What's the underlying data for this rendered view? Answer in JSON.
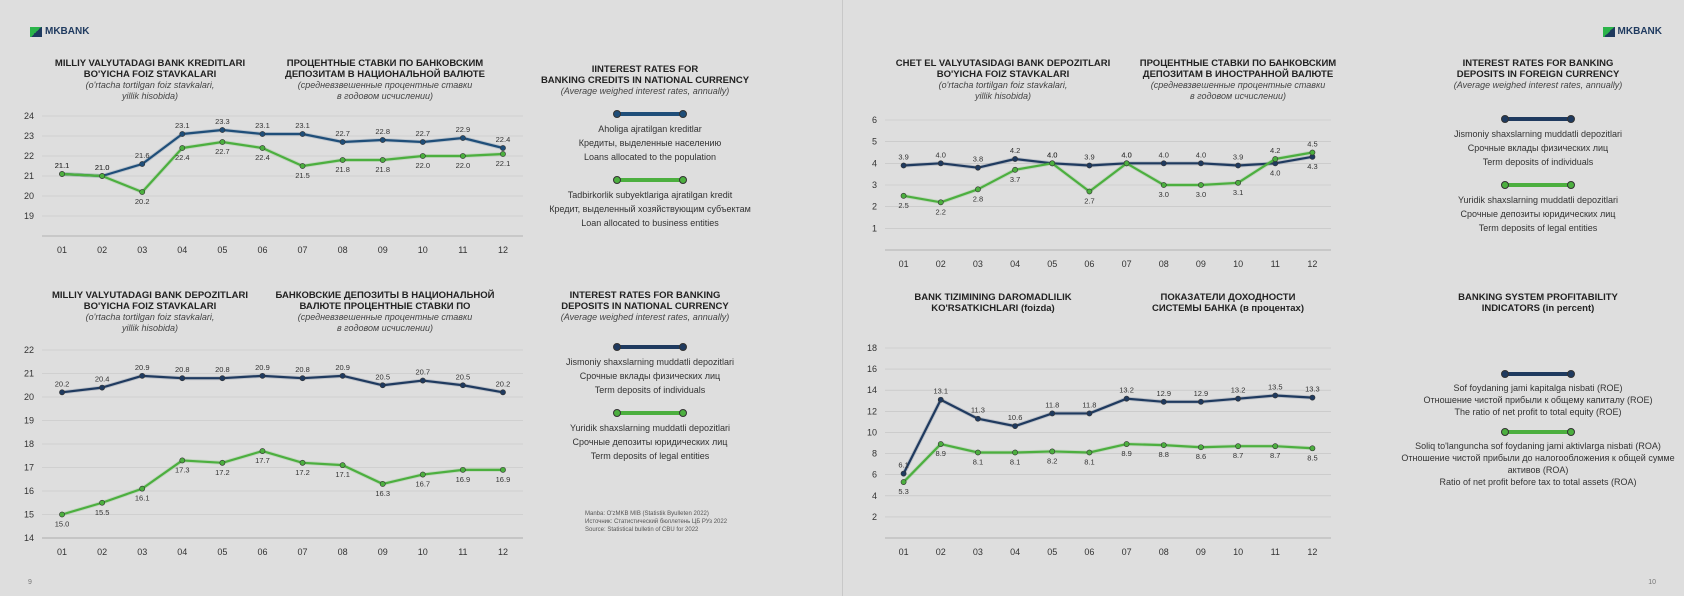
{
  "brand": "MKBANK",
  "pages": {
    "left_number": "9",
    "right_number": "10"
  },
  "source_note": [
    "Manba: O'zMKB MIB (Statistik Byulleten 2022)",
    "Источник: Статистический бюллетень ЦБ РУз 2022",
    "Source: Statistical bulletin of CBU for 2022"
  ],
  "chart_data": [
    {
      "id": "c1",
      "type": "line",
      "titles": {
        "uz": [
          "MILLIY VALYUTADAGI BANK KREDITLARI",
          "BO'YICHA FOIZ STAVKALARI",
          "(o'rtacha tortilgan foiz stavkalari,",
          "yillik hisobida)"
        ],
        "ru": [
          "ПРОЦЕНТНЫЕ СТАВКИ ПО БАНКОВСКИМ",
          "ДЕПОЗИТАМ В НАЦИОНАЛЬНОЙ ВАЛЮТЕ",
          "(средневзвешенные процентные ставки",
          "в годовом исчислении)"
        ],
        "en": [
          "IINTEREST RATES FOR",
          "BANKING CREDITS IN NATIONAL CURRENCY",
          "(Average weighed interest rates, annually)"
        ]
      },
      "categories": [
        "01",
        "02",
        "03",
        "04",
        "05",
        "06",
        "07",
        "08",
        "09",
        "10",
        "11",
        "12"
      ],
      "ylim": [
        18,
        24
      ],
      "yticks": [
        "19",
        "20",
        "21",
        "22",
        "23",
        "24"
      ],
      "series": [
        {
          "name": [
            "Aholiga ajratilgan kreditlar",
            "Кредиты, выделенные населению",
            "Loans allocated to the population"
          ],
          "color": "#1f4e79",
          "values": [
            21.1,
            21.0,
            21.6,
            23.1,
            23.3,
            23.1,
            23.1,
            22.7,
            22.8,
            22.7,
            22.9,
            22.4
          ]
        },
        {
          "name": [
            "Tadbirkorlik subyektlariga ajratilgan kredit",
            "Кредит, выделенный хозяйствующим субъектам",
            "Loan allocated to business entities"
          ],
          "color": "#4caf3f",
          "values": [
            21.1,
            21.0,
            20.2,
            22.4,
            22.7,
            22.4,
            21.5,
            21.8,
            21.8,
            22.0,
            22.0,
            22.1
          ]
        }
      ]
    },
    {
      "id": "c2",
      "type": "line",
      "titles": {
        "uz": [
          "MILLIY VALYUTADAGI BANK DEPOZITLARI",
          "BO'YICHA FOIZ STAVKALARI",
          "(o'rtacha tortilgan foiz stavkalari,",
          "yillik hisobida)"
        ],
        "ru": [
          "БАНКОВСКИЕ ДЕПОЗИТЫ В НАЦИОНАЛЬНОЙ",
          "ВАЛЮТЕ ПРОЦЕНТНЫЕ СТАВКИ ПО",
          "(средневзвешенные процентные ставки",
          "в годовом исчислении)"
        ],
        "en": [
          "INTEREST RATES FOR BANKING",
          "DEPOSITS IN NATIONAL CURRENCY",
          "(Average weighed interest rates, annually)"
        ]
      },
      "categories": [
        "01",
        "02",
        "03",
        "04",
        "05",
        "06",
        "07",
        "08",
        "09",
        "10",
        "11",
        "12"
      ],
      "ylim": [
        14,
        22
      ],
      "yticks": [
        "14",
        "15",
        "16",
        "17",
        "18",
        "19",
        "20",
        "21",
        "22"
      ],
      "series": [
        {
          "name": [
            "Jismoniy shaxslarning muddatli depozitlari",
            "Срочные вклады физических лиц",
            "Term deposits of individuals"
          ],
          "color": "#1f3a5f",
          "values": [
            20.2,
            20.4,
            20.9,
            20.8,
            20.8,
            20.9,
            20.8,
            20.9,
            20.5,
            20.7,
            20.5,
            20.2
          ]
        },
        {
          "name": [
            "Yuridik shaxslarning muddatli depozitlari",
            "Срочные депозиты юридических лиц",
            "Term deposits of legal entities"
          ],
          "color": "#4caf3f",
          "values": [
            15.0,
            15.5,
            16.1,
            17.3,
            17.2,
            17.7,
            17.2,
            17.1,
            16.3,
            16.7,
            16.9,
            16.9
          ]
        }
      ]
    },
    {
      "id": "c3",
      "type": "line",
      "titles": {
        "uz": [
          "CHET EL VALYUTASIDAGI BANK DEPOZITLARI",
          "BO'YICHA FOIZ STAVKALARI",
          "(o'rtacha tortilgan foiz stavkalari,",
          "yillik hisobida)"
        ],
        "ru": [
          "ПРОЦЕНТНЫЕ СТАВКИ ПО БАНКОВСКИМ",
          "ДЕПОЗИТАМ В ИНОСТРАННОЙ ВАЛЮТЕ",
          "(средневзвешенные процентные ставки",
          "в годовом исчислении)"
        ],
        "en": [
          "INTEREST RATES FOR BANKING",
          "DEPOSITS IN FOREIGN CURRENCY",
          "(Average weighed interest rates, annually)"
        ]
      },
      "categories": [
        "01",
        "02",
        "03",
        "04",
        "05",
        "06",
        "07",
        "08",
        "09",
        "10",
        "11",
        "12"
      ],
      "ylim": [
        0,
        6
      ],
      "yticks": [
        "1",
        "2",
        "3",
        "4",
        "5",
        "6"
      ],
      "series": [
        {
          "name": [
            "Jismoniy shaxslarning muddatli depozitlari",
            "Срочные вклады физических лиц",
            "Term deposits of individuals"
          ],
          "color": "#1f3a5f",
          "values": [
            3.9,
            4.0,
            3.8,
            4.2,
            4.0,
            3.9,
            4.0,
            4.0,
            4.0,
            3.9,
            4.0,
            4.3
          ]
        },
        {
          "name": [
            "Yuridik shaxslarning muddatli depozitlari",
            "Срочные депозиты юридических лиц",
            "Term deposits of legal entities"
          ],
          "color": "#4caf3f",
          "values": [
            2.5,
            2.2,
            2.8,
            3.7,
            4.0,
            2.7,
            4.0,
            3.0,
            3.0,
            3.1,
            4.2,
            4.5
          ]
        }
      ]
    },
    {
      "id": "c4",
      "type": "line",
      "titles": {
        "uz": [
          "BANK TIZIMINING DAROMADLILIK",
          "KO'RSATKICHLARI (foizda)"
        ],
        "ru": [
          "ПОКАЗАТЕЛИ ДОХОДНОСТИ",
          "СИСТЕМЫ БАНКА (в процентах)"
        ],
        "en": [
          "BANKING SYSTEM PROFITABILITY",
          "INDICATORS (in percent)"
        ]
      },
      "categories": [
        "01",
        "02",
        "03",
        "04",
        "05",
        "06",
        "07",
        "08",
        "09",
        "10",
        "11",
        "12"
      ],
      "ylim": [
        0,
        18
      ],
      "yticks": [
        "2",
        "4",
        "6",
        "8",
        "10",
        "12",
        "14",
        "16",
        "18"
      ],
      "series": [
        {
          "name": [
            "Sof foydaning jami kapitalga nisbati (ROE)",
            "Отношение чистой прибыли к общему капиталу (ROE)",
            "The ratio of net profit to total equity (ROE)"
          ],
          "color": "#1f3a5f",
          "values": [
            6.1,
            13.1,
            11.3,
            10.6,
            11.8,
            11.8,
            13.2,
            12.9,
            12.9,
            13.2,
            13.5,
            13.3
          ]
        },
        {
          "name": [
            "Soliq to'languncha sof foydaning jami aktivlarga nisbati (ROA)",
            "Отношение чистой прибыли до налогообложения к общей сумме активов (ROA)",
            "Ratio of net profit before tax to total assets (ROA)"
          ],
          "color": "#4caf3f",
          "values": [
            5.3,
            8.9,
            8.1,
            8.1,
            8.2,
            8.1,
            8.9,
            8.8,
            8.6,
            8.7,
            8.7,
            8.5
          ]
        }
      ]
    }
  ]
}
